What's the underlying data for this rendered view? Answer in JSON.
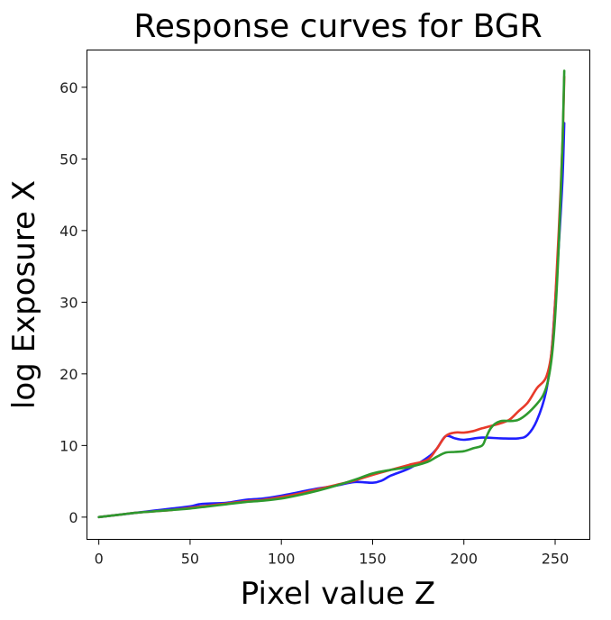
{
  "chart_data": {
    "type": "line",
    "title": "Response curves for BGR",
    "xlabel": "Pixel value Z",
    "ylabel": "log Exposure X",
    "xlim": [
      -6.5,
      269
    ],
    "ylim": [
      -3.1,
      65.2
    ],
    "xticks": [
      0,
      50,
      100,
      150,
      200,
      250
    ],
    "yticks": [
      0,
      10,
      20,
      30,
      40,
      50,
      60
    ],
    "grid": false,
    "series": [
      {
        "color": "#1f1fff",
        "x": [
          0,
          10,
          20,
          30,
          40,
          50,
          55,
          60,
          70,
          80,
          90,
          100,
          110,
          120,
          130,
          140,
          150,
          155,
          160,
          170,
          180,
          185,
          190,
          195,
          200,
          210,
          220,
          230,
          235,
          240,
          245,
          248,
          250,
          252,
          254,
          255
        ],
        "y": [
          0,
          0.3,
          0.6,
          0.9,
          1.2,
          1.5,
          1.8,
          1.9,
          2.0,
          2.4,
          2.6,
          3.0,
          3.5,
          4.0,
          4.4,
          4.9,
          4.8,
          5.1,
          5.8,
          6.8,
          8.3,
          9.5,
          11.3,
          11.0,
          10.8,
          11.1,
          11.0,
          11.0,
          11.5,
          13.5,
          17.5,
          23.0,
          30.0,
          38.0,
          47.0,
          55.0
        ]
      },
      {
        "color": "#e83a2a",
        "x": [
          0,
          10,
          20,
          30,
          40,
          50,
          60,
          70,
          80,
          90,
          100,
          110,
          120,
          130,
          140,
          150,
          160,
          170,
          180,
          185,
          190,
          195,
          200,
          205,
          210,
          220,
          225,
          230,
          235,
          240,
          245,
          248,
          250,
          252,
          254,
          255
        ],
        "y": [
          0,
          0.3,
          0.6,
          0.8,
          1.0,
          1.3,
          1.6,
          1.9,
          2.2,
          2.4,
          2.8,
          3.3,
          3.9,
          4.5,
          5.1,
          5.9,
          6.6,
          7.3,
          8.0,
          9.5,
          11.3,
          11.8,
          11.8,
          12.0,
          12.4,
          13.1,
          13.6,
          14.8,
          16.0,
          18.0,
          19.5,
          23.0,
          30.0,
          40.0,
          52.0,
          61.5
        ]
      },
      {
        "color": "#2e9a2e",
        "x": [
          0,
          10,
          20,
          30,
          40,
          50,
          60,
          70,
          80,
          90,
          100,
          110,
          120,
          130,
          140,
          150,
          160,
          170,
          180,
          185,
          190,
          195,
          200,
          205,
          210,
          212,
          215,
          220,
          230,
          240,
          245,
          248,
          250,
          252,
          254,
          255
        ],
        "y": [
          0,
          0.3,
          0.6,
          0.8,
          1.0,
          1.2,
          1.5,
          1.8,
          2.1,
          2.3,
          2.6,
          3.1,
          3.7,
          4.4,
          5.2,
          6.1,
          6.6,
          7.0,
          7.7,
          8.4,
          9.0,
          9.1,
          9.2,
          9.6,
          10.0,
          11.0,
          12.5,
          13.4,
          13.6,
          15.8,
          18.0,
          22.0,
          28.0,
          38.0,
          52.0,
          62.3
        ]
      }
    ]
  }
}
